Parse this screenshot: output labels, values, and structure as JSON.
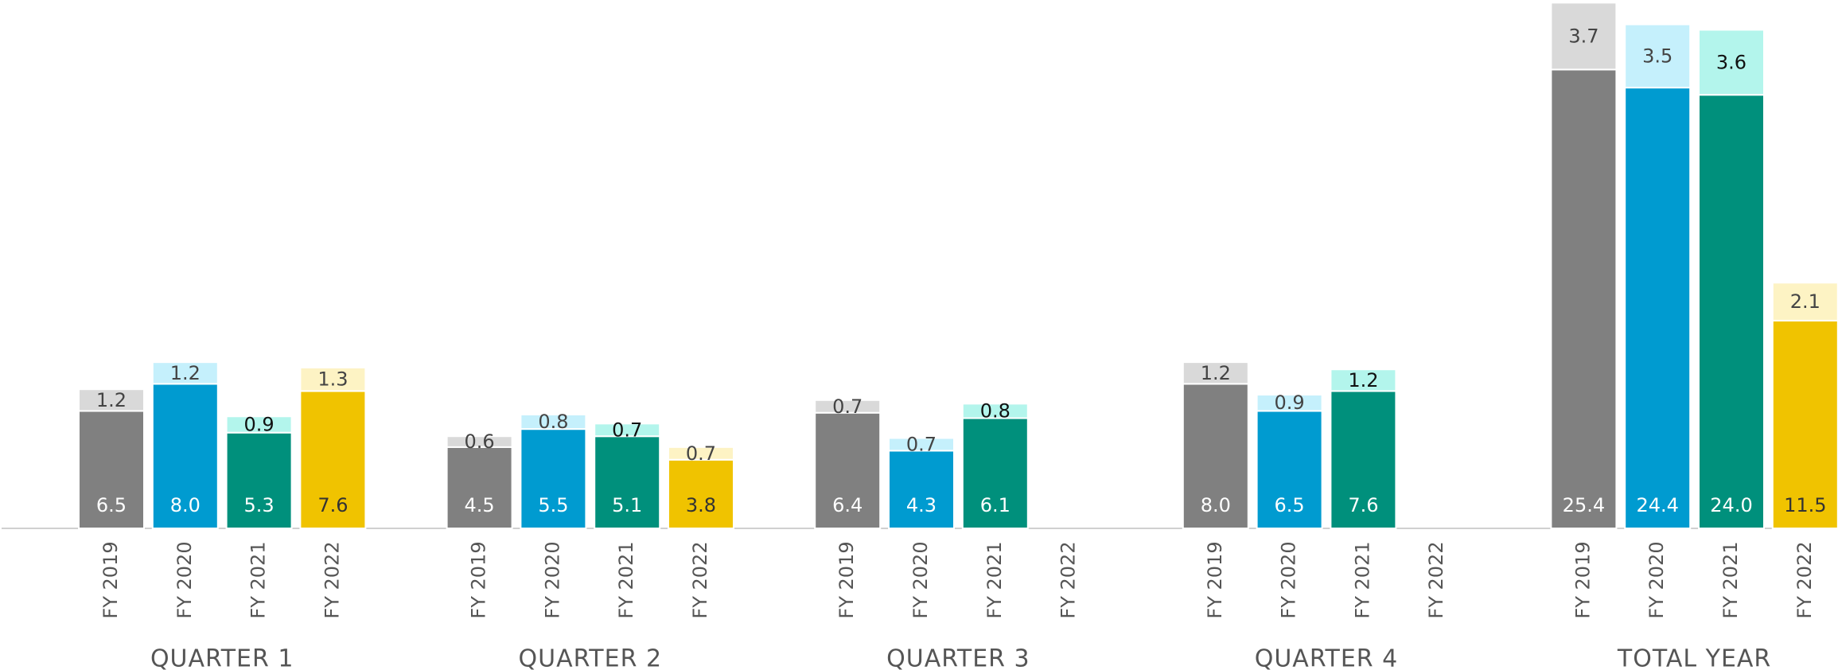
{
  "chart_data": [
    {
      "type": "bar",
      "stacked": true,
      "title": "QUARTER 1",
      "categories": [
        "FY 2019",
        "FY 2020",
        "FY 2021",
        "FY 2022"
      ],
      "ylim": [
        0,
        29.25
      ],
      "series": [
        {
          "colors": [
            "#808080",
            "#009bd0",
            "#00907c",
            "#f0c300"
          ],
          "label_colors": [
            "#ffffff",
            "#ffffff",
            "#ffffff",
            "#333333"
          ],
          "values": [
            6.5,
            8.0,
            5.3,
            7.6
          ],
          "value_labels": [
            "6.5",
            "8.0",
            "5.3",
            "7.6"
          ]
        },
        {
          "colors": [
            "#d9d9d9",
            "#c5f0fc",
            "#b3f5ec",
            "#fdf3c4"
          ],
          "label_colors": [
            "#444444",
            "#444444",
            "#111111",
            "#444444"
          ],
          "values": [
            1.2,
            1.2,
            0.9,
            1.3
          ],
          "value_labels": [
            "1.2",
            "1.2",
            "0.9",
            "1.3"
          ]
        }
      ]
    },
    {
      "type": "bar",
      "stacked": true,
      "title": "QUARTER 2",
      "categories": [
        "FY 2019",
        "FY 2020",
        "FY 2021",
        "FY 2022"
      ],
      "ylim": [
        0,
        29.25
      ],
      "series": [
        {
          "colors": [
            "#808080",
            "#009bd0",
            "#00907c",
            "#f0c300"
          ],
          "label_colors": [
            "#ffffff",
            "#ffffff",
            "#ffffff",
            "#333333"
          ],
          "values": [
            4.5,
            5.5,
            5.1,
            3.8
          ],
          "value_labels": [
            "4.5",
            "5.5",
            "5.1",
            "3.8"
          ]
        },
        {
          "colors": [
            "#d9d9d9",
            "#c5f0fc",
            "#b3f5ec",
            "#fdf3c4"
          ],
          "label_colors": [
            "#444444",
            "#444444",
            "#111111",
            "#444444"
          ],
          "values": [
            0.6,
            0.8,
            0.7,
            0.7
          ],
          "value_labels": [
            "0.6",
            "0.8",
            "0.7",
            "0.7"
          ]
        }
      ]
    },
    {
      "type": "bar",
      "stacked": true,
      "title": "QUARTER 3",
      "categories": [
        "FY 2019",
        "FY 2020",
        "FY 2021",
        "FY 2022"
      ],
      "ylim": [
        0,
        29.25
      ],
      "series": [
        {
          "colors": [
            "#808080",
            "#009bd0",
            "#00907c",
            "#f0c300"
          ],
          "label_colors": [
            "#ffffff",
            "#ffffff",
            "#ffffff",
            "#333333"
          ],
          "values": [
            6.4,
            4.3,
            6.1,
            null
          ],
          "value_labels": [
            "6.4",
            "4.3",
            "6.1",
            null
          ]
        },
        {
          "colors": [
            "#d9d9d9",
            "#c5f0fc",
            "#b3f5ec",
            "#fdf3c4"
          ],
          "label_colors": [
            "#444444",
            "#444444",
            "#111111",
            "#444444"
          ],
          "values": [
            0.7,
            0.7,
            0.8,
            null
          ],
          "value_labels": [
            "0.7",
            "0.7",
            "0.8",
            null
          ]
        }
      ]
    },
    {
      "type": "bar",
      "stacked": true,
      "title": "QUARTER 4",
      "categories": [
        "FY 2019",
        "FY 2020",
        "FY 2021",
        "FY 2022"
      ],
      "ylim": [
        0,
        29.25
      ],
      "series": [
        {
          "colors": [
            "#808080",
            "#009bd0",
            "#00907c",
            "#f0c300"
          ],
          "label_colors": [
            "#ffffff",
            "#ffffff",
            "#ffffff",
            "#333333"
          ],
          "values": [
            8.0,
            6.5,
            7.6,
            null
          ],
          "value_labels": [
            "8.0",
            "6.5",
            "7.6",
            null
          ]
        },
        {
          "colors": [
            "#d9d9d9",
            "#c5f0fc",
            "#b3f5ec",
            "#fdf3c4"
          ],
          "label_colors": [
            "#444444",
            "#444444",
            "#111111",
            "#444444"
          ],
          "values": [
            1.2,
            0.9,
            1.2,
            null
          ],
          "value_labels": [
            "1.2",
            "0.9",
            "1.2",
            null
          ]
        }
      ]
    },
    {
      "type": "bar",
      "stacked": true,
      "title": "TOTAL YEAR",
      "categories": [
        "FY 2019",
        "FY 2020",
        "FY 2021",
        "FY 2022"
      ],
      "ylim": [
        0,
        29.25
      ],
      "series": [
        {
          "colors": [
            "#808080",
            "#009bd0",
            "#00907c",
            "#f0c300"
          ],
          "label_colors": [
            "#ffffff",
            "#ffffff",
            "#ffffff",
            "#333333"
          ],
          "values": [
            25.4,
            24.4,
            24.0,
            11.5
          ],
          "value_labels": [
            "25.4",
            "24.4",
            "24.0",
            "11.5"
          ]
        },
        {
          "colors": [
            "#d9d9d9",
            "#c5f0fc",
            "#b3f5ec",
            "#fdf3c4"
          ],
          "label_colors": [
            "#444444",
            "#444444",
            "#111111",
            "#444444"
          ],
          "values": [
            3.7,
            3.5,
            3.6,
            2.1
          ],
          "value_labels": [
            "3.7",
            "3.5",
            "3.6",
            "2.1"
          ]
        }
      ]
    }
  ]
}
